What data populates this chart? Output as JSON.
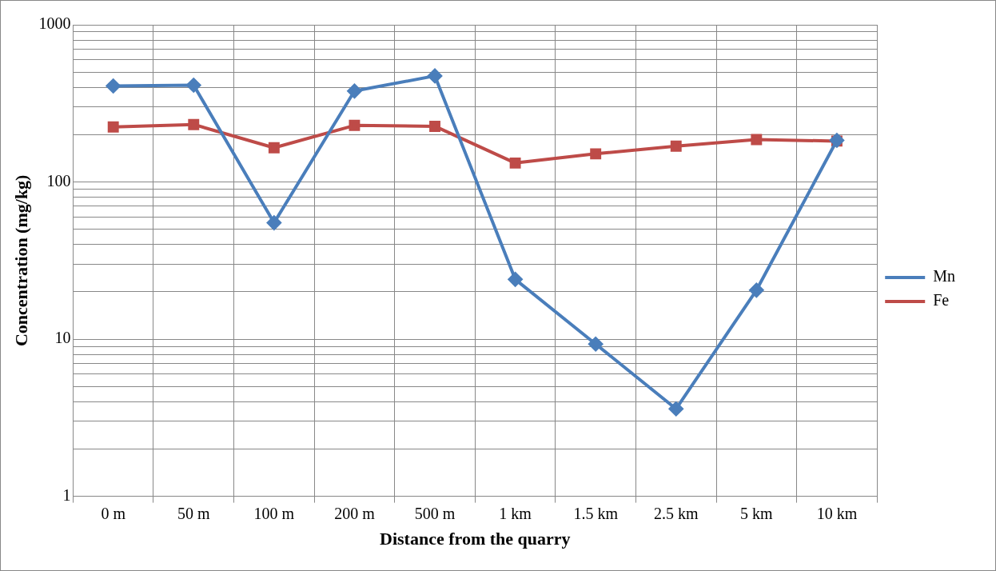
{
  "chart_data": {
    "type": "line",
    "xlabel": "Distance from the quarry",
    "ylabel": "Concentration (mg/kg)",
    "categories": [
      "0 m",
      "50 m",
      "100 m",
      "200 m",
      "500 m",
      "1 km",
      "1.5 km",
      "2.5 km",
      "5 km",
      "10 km"
    ],
    "series": [
      {
        "name": "Mn",
        "color": "#4a7ebb",
        "marker": "diamond",
        "values": [
          408,
          413,
          55,
          379,
          473,
          24,
          9.3,
          3.6,
          20.5,
          184
        ]
      },
      {
        "name": "Fe",
        "color": "#be4b48",
        "marker": "square",
        "values": [
          224,
          232,
          165,
          229,
          226,
          132,
          151,
          169,
          186,
          182
        ]
      }
    ],
    "log": "y",
    "ylim": [
      1,
      1000
    ],
    "yticks": [
      1,
      {
        "value": 2,
        "label": null
      },
      {
        "value": 3,
        "label": null
      },
      {
        "value": 4,
        "label": null
      },
      {
        "value": 5,
        "label": null
      },
      {
        "value": 6,
        "label": null
      },
      {
        "value": 7,
        "label": null
      },
      {
        "value": 8,
        "label": null
      },
      {
        "value": 9,
        "label": null
      },
      10,
      {
        "value": 20,
        "label": null
      },
      {
        "value": 30,
        "label": null
      },
      {
        "value": 40,
        "label": null
      },
      {
        "value": 50,
        "label": null
      },
      {
        "value": 60,
        "label": null
      },
      {
        "value": 70,
        "label": null
      },
      {
        "value": 80,
        "label": null
      },
      {
        "value": 90,
        "label": null
      },
      100,
      {
        "value": 200,
        "label": null
      },
      {
        "value": 300,
        "label": null
      },
      {
        "value": 400,
        "label": null
      },
      {
        "value": 500,
        "label": null
      },
      {
        "value": 600,
        "label": null
      },
      {
        "value": 700,
        "label": null
      },
      {
        "value": 800,
        "label": null
      },
      {
        "value": 900,
        "label": null
      },
      1000
    ],
    "grid": true,
    "legend": "right",
    "line_style": "solid"
  }
}
